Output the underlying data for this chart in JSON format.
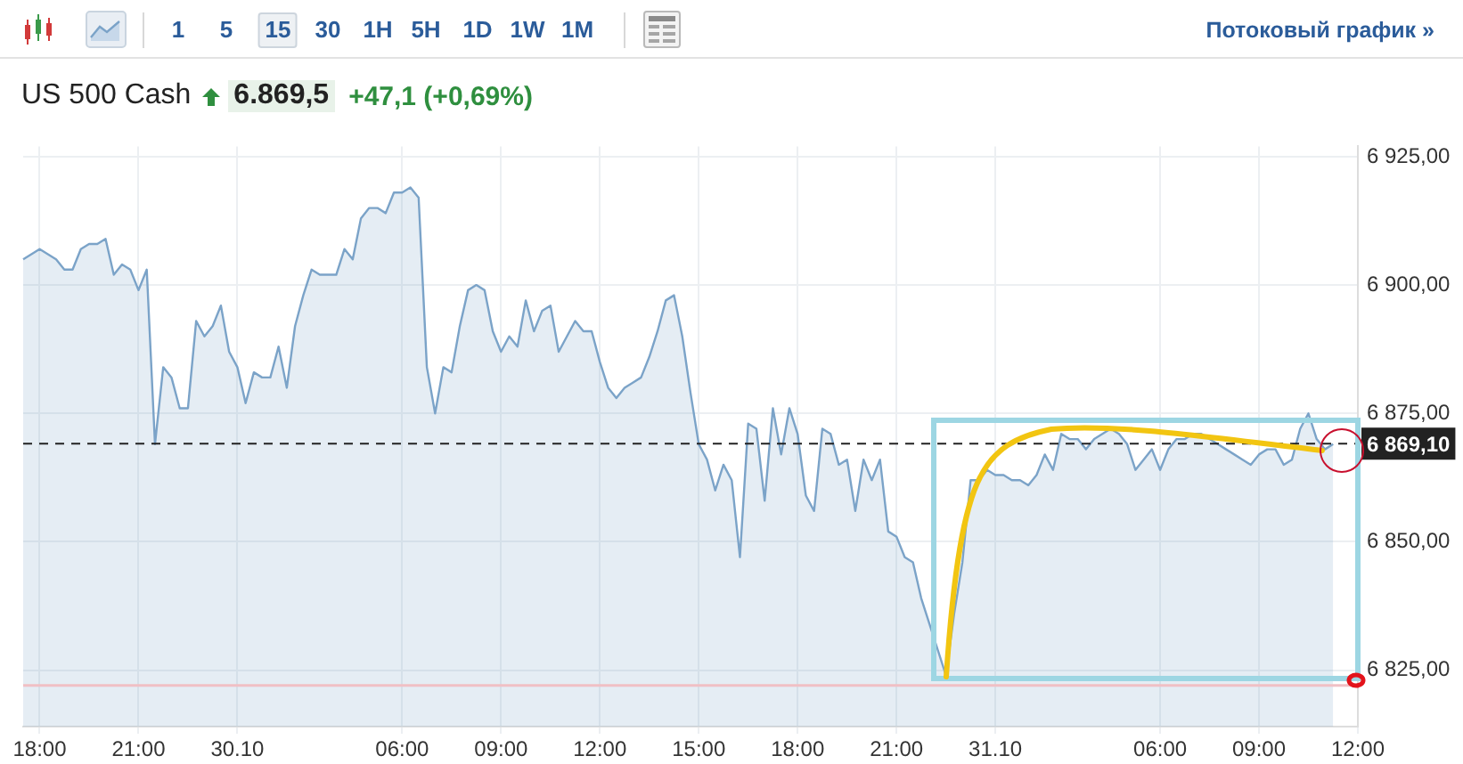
{
  "chart_data": {
    "type": "area",
    "title": "US 500 Cash",
    "subtitle": "6.869,5 +47,1 (+0,69%)",
    "annotations": [
      "1",
      "5",
      "15",
      "30",
      "1H",
      "5H",
      "1D",
      "1W",
      "1M",
      "Потоковый график »"
    ],
    "categories": [
      null,
      null,
      "18:00",
      null,
      null,
      null,
      null,
      null,
      null,
      null,
      null,
      null,
      null,
      null,
      "21:00",
      null,
      null,
      null,
      null,
      null,
      null,
      null,
      null,
      null,
      null,
      null,
      "30.10",
      null,
      null,
      null,
      null,
      null,
      null,
      null,
      null,
      null,
      null,
      null,
      null,
      null,
      null,
      null,
      null,
      null,
      null,
      null,
      "06:00",
      null,
      null,
      null,
      null,
      null,
      null,
      null,
      null,
      null,
      null,
      null,
      "09:00",
      null,
      null,
      null,
      null,
      null,
      null,
      null,
      null,
      null,
      null,
      null,
      "12:00",
      null,
      null,
      null,
      null,
      null,
      null,
      null,
      null,
      null,
      null,
      null,
      "15:00",
      null,
      null,
      null,
      null,
      null,
      null,
      null,
      null,
      null,
      null,
      null,
      "18:00",
      null,
      null,
      null,
      null,
      null,
      null,
      null,
      null,
      null,
      null,
      null,
      "21:00",
      null,
      null,
      null,
      null,
      null,
      null,
      null,
      null,
      null,
      null,
      null,
      "31.10",
      null,
      null,
      null,
      null,
      null,
      null,
      null,
      null,
      null,
      null,
      null,
      null,
      null,
      null,
      null,
      null,
      null,
      null,
      null,
      "06:00",
      null,
      null,
      null,
      null,
      null,
      null,
      null,
      null,
      null,
      null,
      null,
      "09:00",
      null,
      null,
      null,
      null,
      null,
      null,
      null,
      null,
      null,
      null,
      null,
      "12:00"
    ],
    "values": [
      6905,
      6906,
      6907,
      6906,
      6905,
      6903,
      6903,
      6907,
      6908,
      6908,
      6909,
      6902,
      6904,
      6903,
      6899,
      6903,
      6869,
      6884,
      6882,
      6876,
      6876,
      6893,
      6890,
      6892,
      6896,
      6887,
      6884,
      6877,
      6883,
      6882,
      6882,
      6888,
      6880,
      6892,
      6898,
      6903,
      6902,
      6902,
      6902,
      6907,
      6905,
      6913,
      6915,
      6915,
      6914,
      6918,
      6918,
      6919,
      6917,
      6884,
      6875,
      6884,
      6883,
      6892,
      6899,
      6900,
      6899,
      6891,
      6887,
      6890,
      6888,
      6897,
      6891,
      6895,
      6896,
      6887,
      6890,
      6893,
      6891,
      6891,
      6885,
      6880,
      6878,
      6880,
      6881,
      6882,
      6886,
      6891,
      6897,
      6898,
      6890,
      6879,
      6869,
      6866,
      6860,
      6865,
      6862,
      6847,
      6873,
      6872,
      6858,
      6876,
      6867,
      6876,
      6871,
      6859,
      6856,
      6872,
      6871,
      6865,
      6866,
      6856,
      6866,
      6862,
      6866,
      6852,
      6851,
      6847,
      6846,
      6839,
      6834,
      6829,
      6824,
      6836,
      6846,
      6862,
      6862,
      6864,
      6863,
      6863,
      6862,
      6862,
      6861,
      6863,
      6867,
      6864,
      6871,
      6870,
      6870,
      6868,
      6870,
      6871,
      6872,
      6871,
      6869,
      6864,
      6866,
      6868,
      6864,
      6868,
      6870,
      6870,
      6871,
      6871,
      6870,
      6869,
      6868,
      6867,
      6866,
      6865,
      6867,
      6868,
      6868,
      6865,
      6866,
      6872,
      6875,
      6870,
      6868,
      6869,
      null,
      null,
      null
    ],
    "color": "#7ba3c8",
    "ylim": [
      6814,
      6927
    ],
    "yticks": [
      {
        "value": 6825,
        "label": "6 825,00"
      },
      {
        "value": 6850,
        "label": "6 850,00"
      },
      {
        "value": 6875,
        "label": "6 875,00"
      },
      {
        "value": 6900,
        "label": "6 900,00"
      },
      {
        "value": 6925,
        "label": "6 925,00"
      }
    ],
    "grid": true,
    "ref_lines": [
      {
        "axis": "y",
        "value": 6869.1,
        "label": "6 869,10",
        "color": "#222222",
        "line_style": "dashed"
      },
      {
        "axis": "y",
        "value": 6822,
        "color": "#f0c0c5",
        "line_style": "solid"
      }
    ]
  }
}
